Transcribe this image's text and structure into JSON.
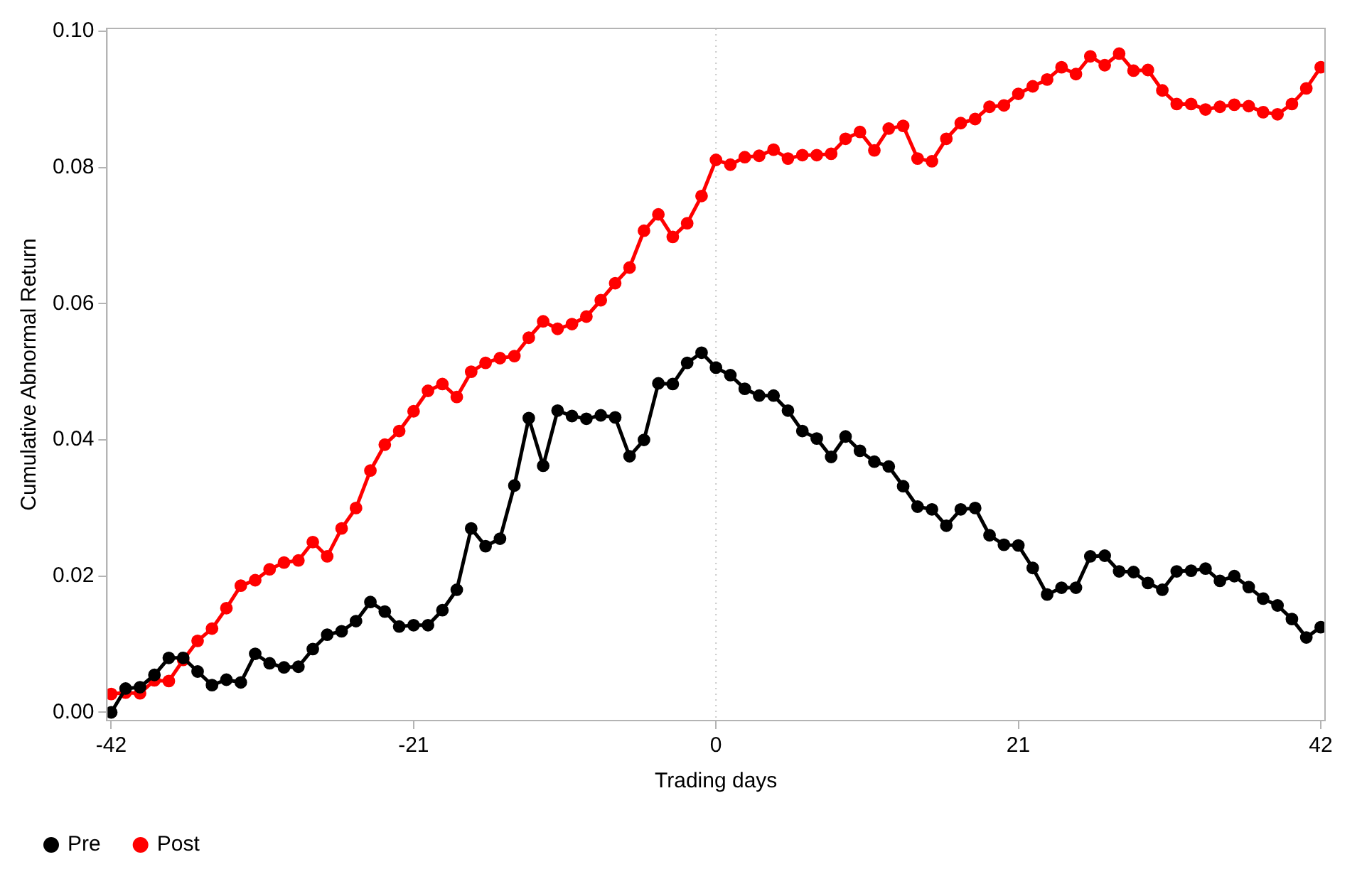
{
  "chart_data": {
    "type": "line",
    "xlabel": "Trading days",
    "ylabel": "Cumulative Abnormal Return",
    "x": [
      -42,
      -41,
      -40,
      -39,
      -38,
      -37,
      -36,
      -35,
      -34,
      -33,
      -32,
      -31,
      -30,
      -29,
      -28,
      -27,
      -26,
      -25,
      -24,
      -23,
      -22,
      -21,
      -20,
      -19,
      -18,
      -17,
      -16,
      -15,
      -14,
      -13,
      -12,
      -11,
      -10,
      -9,
      -8,
      -7,
      -6,
      -5,
      -4,
      -3,
      -2,
      -1,
      0,
      1,
      2,
      3,
      4,
      5,
      6,
      7,
      8,
      9,
      10,
      11,
      12,
      13,
      14,
      15,
      16,
      17,
      18,
      19,
      20,
      21,
      22,
      23,
      24,
      25,
      26,
      27,
      28,
      29,
      30,
      31,
      32,
      33,
      34,
      35,
      36,
      37,
      38,
      39,
      40,
      41,
      42
    ],
    "series": [
      {
        "name": "Pre",
        "color": "#000000",
        "values": [
          0.0,
          0.0035,
          0.0037,
          0.0055,
          0.008,
          0.008,
          0.006,
          0.004,
          0.0048,
          0.0044,
          0.0086,
          0.0072,
          0.0066,
          0.0067,
          0.0093,
          0.0114,
          0.0119,
          0.0134,
          0.0162,
          0.0148,
          0.0126,
          0.0128,
          0.0128,
          0.015,
          0.018,
          0.027,
          0.0244,
          0.0255,
          0.0333,
          0.0432,
          0.0362,
          0.0443,
          0.0435,
          0.0431,
          0.0436,
          0.0433,
          0.0376,
          0.04,
          0.0483,
          0.0482,
          0.0513,
          0.0528,
          0.0506,
          0.0495,
          0.0475,
          0.0465,
          0.0465,
          0.0443,
          0.0413,
          0.0402,
          0.0375,
          0.0405,
          0.0384,
          0.0368,
          0.0361,
          0.0332,
          0.0302,
          0.0298,
          0.0274,
          0.0298,
          0.03,
          0.026,
          0.0246,
          0.0245,
          0.0212,
          0.0173,
          0.0183,
          0.0183,
          0.0229,
          0.023,
          0.0207,
          0.0206,
          0.019,
          0.018,
          0.0207,
          0.0208,
          0.0211,
          0.0193,
          0.02,
          0.0184,
          0.0167,
          0.0157,
          0.0137,
          0.011,
          0.0125
        ]
      },
      {
        "name": "Post",
        "color": "#ff0000",
        "values": [
          0.0027,
          0.0029,
          0.0028,
          0.0047,
          0.0046,
          0.0077,
          0.0105,
          0.0123,
          0.0153,
          0.0186,
          0.0194,
          0.021,
          0.022,
          0.0223,
          0.025,
          0.0229,
          0.027,
          0.03,
          0.0355,
          0.0393,
          0.0413,
          0.0442,
          0.0472,
          0.0482,
          0.0463,
          0.05,
          0.0513,
          0.052,
          0.0523,
          0.055,
          0.0574,
          0.0563,
          0.057,
          0.0581,
          0.0605,
          0.063,
          0.0653,
          0.0707,
          0.0731,
          0.0698,
          0.0718,
          0.0758,
          0.0811,
          0.0804,
          0.0815,
          0.0817,
          0.0826,
          0.0813,
          0.0818,
          0.0818,
          0.082,
          0.0842,
          0.0852,
          0.0825,
          0.0857,
          0.0861,
          0.0813,
          0.0809,
          0.0842,
          0.0865,
          0.0871,
          0.0889,
          0.0891,
          0.0908,
          0.0919,
          0.0929,
          0.0947,
          0.0937,
          0.0963,
          0.095,
          0.0967,
          0.0942,
          0.0943,
          0.0913,
          0.0893,
          0.0893,
          0.0885,
          0.0889,
          0.0892,
          0.089,
          0.0881,
          0.0878,
          0.0893,
          0.0916,
          0.0947
        ]
      }
    ],
    "xlim": [
      -42.3,
      42.3
    ],
    "xticks": [
      -42,
      -21,
      0,
      21,
      42
    ],
    "ylim": [
      -0.0012,
      0.1004
    ],
    "yticks": [
      {
        "value": 0,
        "label": "0.00"
      },
      {
        "value": 0.02,
        "label": "0.02"
      },
      {
        "value": 0.04,
        "label": "0.04"
      },
      {
        "value": 0.06,
        "label": "0.06"
      },
      {
        "value": 0.08,
        "label": "0.08"
      },
      {
        "value": 0.1,
        "label": "0.10"
      }
    ],
    "ref_lines": [
      {
        "axis": "x",
        "value": 0,
        "color": "#c8c8c8",
        "line_style": "dotted"
      }
    ],
    "grid": false,
    "legend": "bottom left",
    "marker": "circle",
    "line_style": "solid"
  }
}
